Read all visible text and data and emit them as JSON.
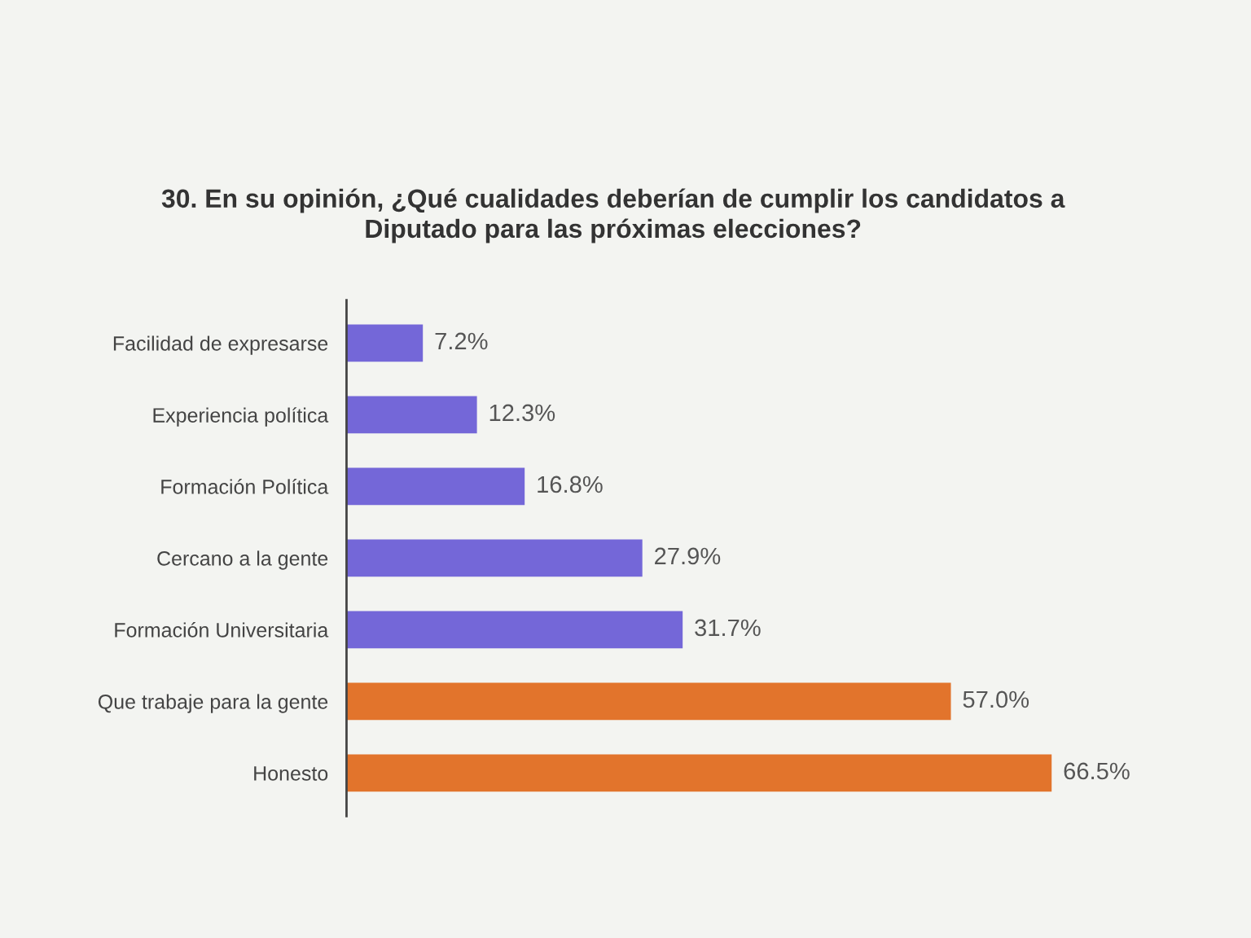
{
  "chart_data": {
    "type": "bar",
    "orientation": "horizontal",
    "title": "30. En su opinión, ¿Qué cualidades deberían de cumplir los candidatos a\nDiputado para las próximas elecciones?",
    "categories": [
      "Facilidad de expresarse",
      "Experiencia política",
      "Formación Política",
      "Cercano a la gente",
      "Formación Universitaria",
      "Que trabaje para la gente",
      "Honesto"
    ],
    "values": [
      7.2,
      12.3,
      16.8,
      27.9,
      31.7,
      57.0,
      66.5
    ],
    "value_labels": [
      "7.2%",
      "12.3%",
      "16.8%",
      "27.9%",
      "31.7%",
      "57.0%",
      "66.5%"
    ],
    "colors": [
      "#7467d8",
      "#7467d8",
      "#7467d8",
      "#7467d8",
      "#7467d8",
      "#e2742c",
      "#e2742c"
    ],
    "grid": false,
    "legend": false
  }
}
